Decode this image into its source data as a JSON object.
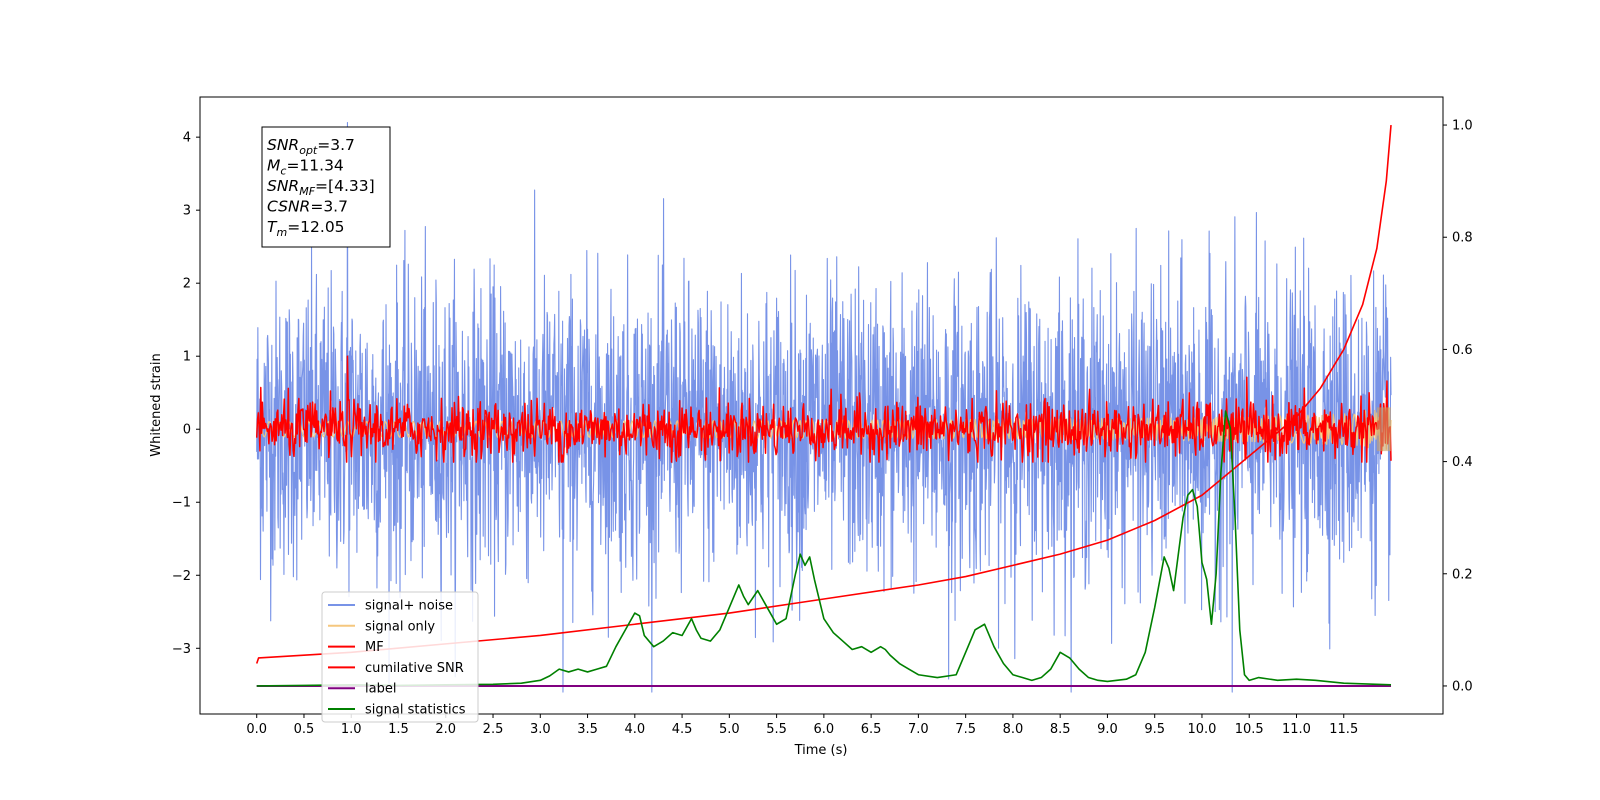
{
  "chart_data": {
    "type": "line",
    "xlabel": "Time (s)",
    "ylabel": "Whitened strain",
    "xlim": [
      -0.6,
      12.55
    ],
    "ylim": [
      -3.9,
      4.55
    ],
    "y2lim": [
      -0.05,
      1.05
    ],
    "x_ticks": [
      "0.0",
      "0.5",
      "1.0",
      "1.5",
      "2.0",
      "2.5",
      "3.0",
      "3.5",
      "4.0",
      "4.5",
      "5.0",
      "5.5",
      "6.0",
      "6.5",
      "7.0",
      "7.5",
      "8.0",
      "8.5",
      "9.0",
      "9.5",
      "10.0",
      "10.5",
      "11.0",
      "11.5"
    ],
    "y_ticks": [
      "−3",
      "−2",
      "−1",
      "0",
      "1",
      "2",
      "3",
      "4"
    ],
    "y2_ticks": [
      "0.0",
      "0.2",
      "0.4",
      "0.6",
      "0.8",
      "1.0"
    ],
    "legend_position": "lower-left",
    "annotation": [
      {
        "label": "SNR",
        "sub": "opt",
        "value": "=3.7"
      },
      {
        "label": "M",
        "sub": "c",
        "value": "=11.34"
      },
      {
        "label": "SNR",
        "sub": "MF",
        "value": "=[4.33]"
      },
      {
        "label": "CSNR",
        "sub": "",
        "value": "=3.7"
      },
      {
        "label": "T",
        "sub": "m",
        "value": "=12.05"
      }
    ],
    "series": [
      {
        "name": "signal+ noise",
        "color": "#7893e7",
        "axis": "left",
        "kind": "noise",
        "range": [
          0.0,
          12.0
        ],
        "mean": 0.0,
        "spread": 1.0,
        "extremes": [
          -3.6,
          4.2
        ]
      },
      {
        "name": "signal only",
        "color": "#f5c77e",
        "axis": "left",
        "kind": "chirp",
        "range": [
          0.0,
          12.0
        ],
        "max_amplitude": 0.3
      },
      {
        "name": "MF",
        "color": "#ff0000",
        "axis": "left",
        "kind": "noise",
        "range": [
          0.0,
          12.0
        ],
        "mean": 0.0,
        "spread": 0.2,
        "extremes": [
          -0.45,
          1.0
        ]
      },
      {
        "name": "cumilative SNR",
        "color": "#ff0000",
        "axis": "right",
        "kind": "line",
        "x": [
          0.0,
          0.02,
          1.0,
          2.0,
          3.0,
          4.0,
          5.0,
          6.0,
          7.0,
          7.5,
          8.0,
          8.5,
          9.0,
          9.5,
          10.0,
          10.5,
          11.0,
          11.25,
          11.5,
          11.7,
          11.85,
          11.95,
          12.0
        ],
        "values": [
          0.04,
          0.05,
          0.06,
          0.075,
          0.09,
          0.11,
          0.13,
          0.155,
          0.18,
          0.195,
          0.215,
          0.235,
          0.26,
          0.295,
          0.34,
          0.41,
          0.48,
          0.53,
          0.6,
          0.68,
          0.78,
          0.9,
          1.0
        ]
      },
      {
        "name": "label",
        "color": "#800080",
        "axis": "right",
        "kind": "line",
        "x": [
          0.0,
          12.0
        ],
        "values": [
          0.0,
          0.0
        ]
      },
      {
        "name": "signal statistics",
        "color": "#008000",
        "axis": "right",
        "kind": "line",
        "x": [
          0.0,
          0.5,
          1.0,
          1.5,
          2.0,
          2.5,
          2.8,
          3.0,
          3.1,
          3.2,
          3.3,
          3.4,
          3.5,
          3.6,
          3.7,
          3.8,
          3.9,
          4.0,
          4.05,
          4.1,
          4.2,
          4.3,
          4.4,
          4.5,
          4.6,
          4.65,
          4.7,
          4.8,
          4.9,
          5.0,
          5.1,
          5.15,
          5.2,
          5.3,
          5.4,
          5.5,
          5.6,
          5.7,
          5.75,
          5.8,
          5.85,
          5.9,
          6.0,
          6.1,
          6.2,
          6.3,
          6.4,
          6.5,
          6.6,
          6.65,
          6.7,
          6.8,
          6.9,
          7.0,
          7.2,
          7.4,
          7.5,
          7.6,
          7.7,
          7.75,
          7.8,
          7.9,
          8.0,
          8.1,
          8.2,
          8.3,
          8.4,
          8.5,
          8.6,
          8.7,
          8.8,
          8.9,
          9.0,
          9.2,
          9.3,
          9.4,
          9.5,
          9.6,
          9.65,
          9.7,
          9.8,
          9.85,
          9.9,
          9.95,
          10.0,
          10.05,
          10.1,
          10.15,
          10.2,
          10.25,
          10.3,
          10.35,
          10.4,
          10.45,
          10.5,
          10.6,
          10.8,
          11.0,
          11.2,
          11.5,
          12.0
        ],
        "values": [
          0.0,
          0.001,
          0.002,
          0.001,
          0.002,
          0.003,
          0.005,
          0.01,
          0.018,
          0.03,
          0.025,
          0.03,
          0.025,
          0.03,
          0.035,
          0.07,
          0.1,
          0.13,
          0.125,
          0.09,
          0.07,
          0.08,
          0.095,
          0.09,
          0.12,
          0.1,
          0.085,
          0.08,
          0.1,
          0.14,
          0.18,
          0.16,
          0.145,
          0.17,
          0.14,
          0.11,
          0.12,
          0.2,
          0.235,
          0.215,
          0.23,
          0.19,
          0.12,
          0.095,
          0.08,
          0.065,
          0.07,
          0.06,
          0.07,
          0.065,
          0.055,
          0.04,
          0.03,
          0.02,
          0.015,
          0.02,
          0.06,
          0.1,
          0.11,
          0.09,
          0.07,
          0.04,
          0.02,
          0.015,
          0.01,
          0.015,
          0.03,
          0.06,
          0.05,
          0.03,
          0.015,
          0.01,
          0.008,
          0.012,
          0.02,
          0.06,
          0.14,
          0.23,
          0.21,
          0.17,
          0.3,
          0.34,
          0.35,
          0.32,
          0.22,
          0.19,
          0.11,
          0.2,
          0.38,
          0.49,
          0.46,
          0.3,
          0.1,
          0.02,
          0.01,
          0.015,
          0.01,
          0.012,
          0.01,
          0.005,
          0.002
        ]
      }
    ]
  }
}
